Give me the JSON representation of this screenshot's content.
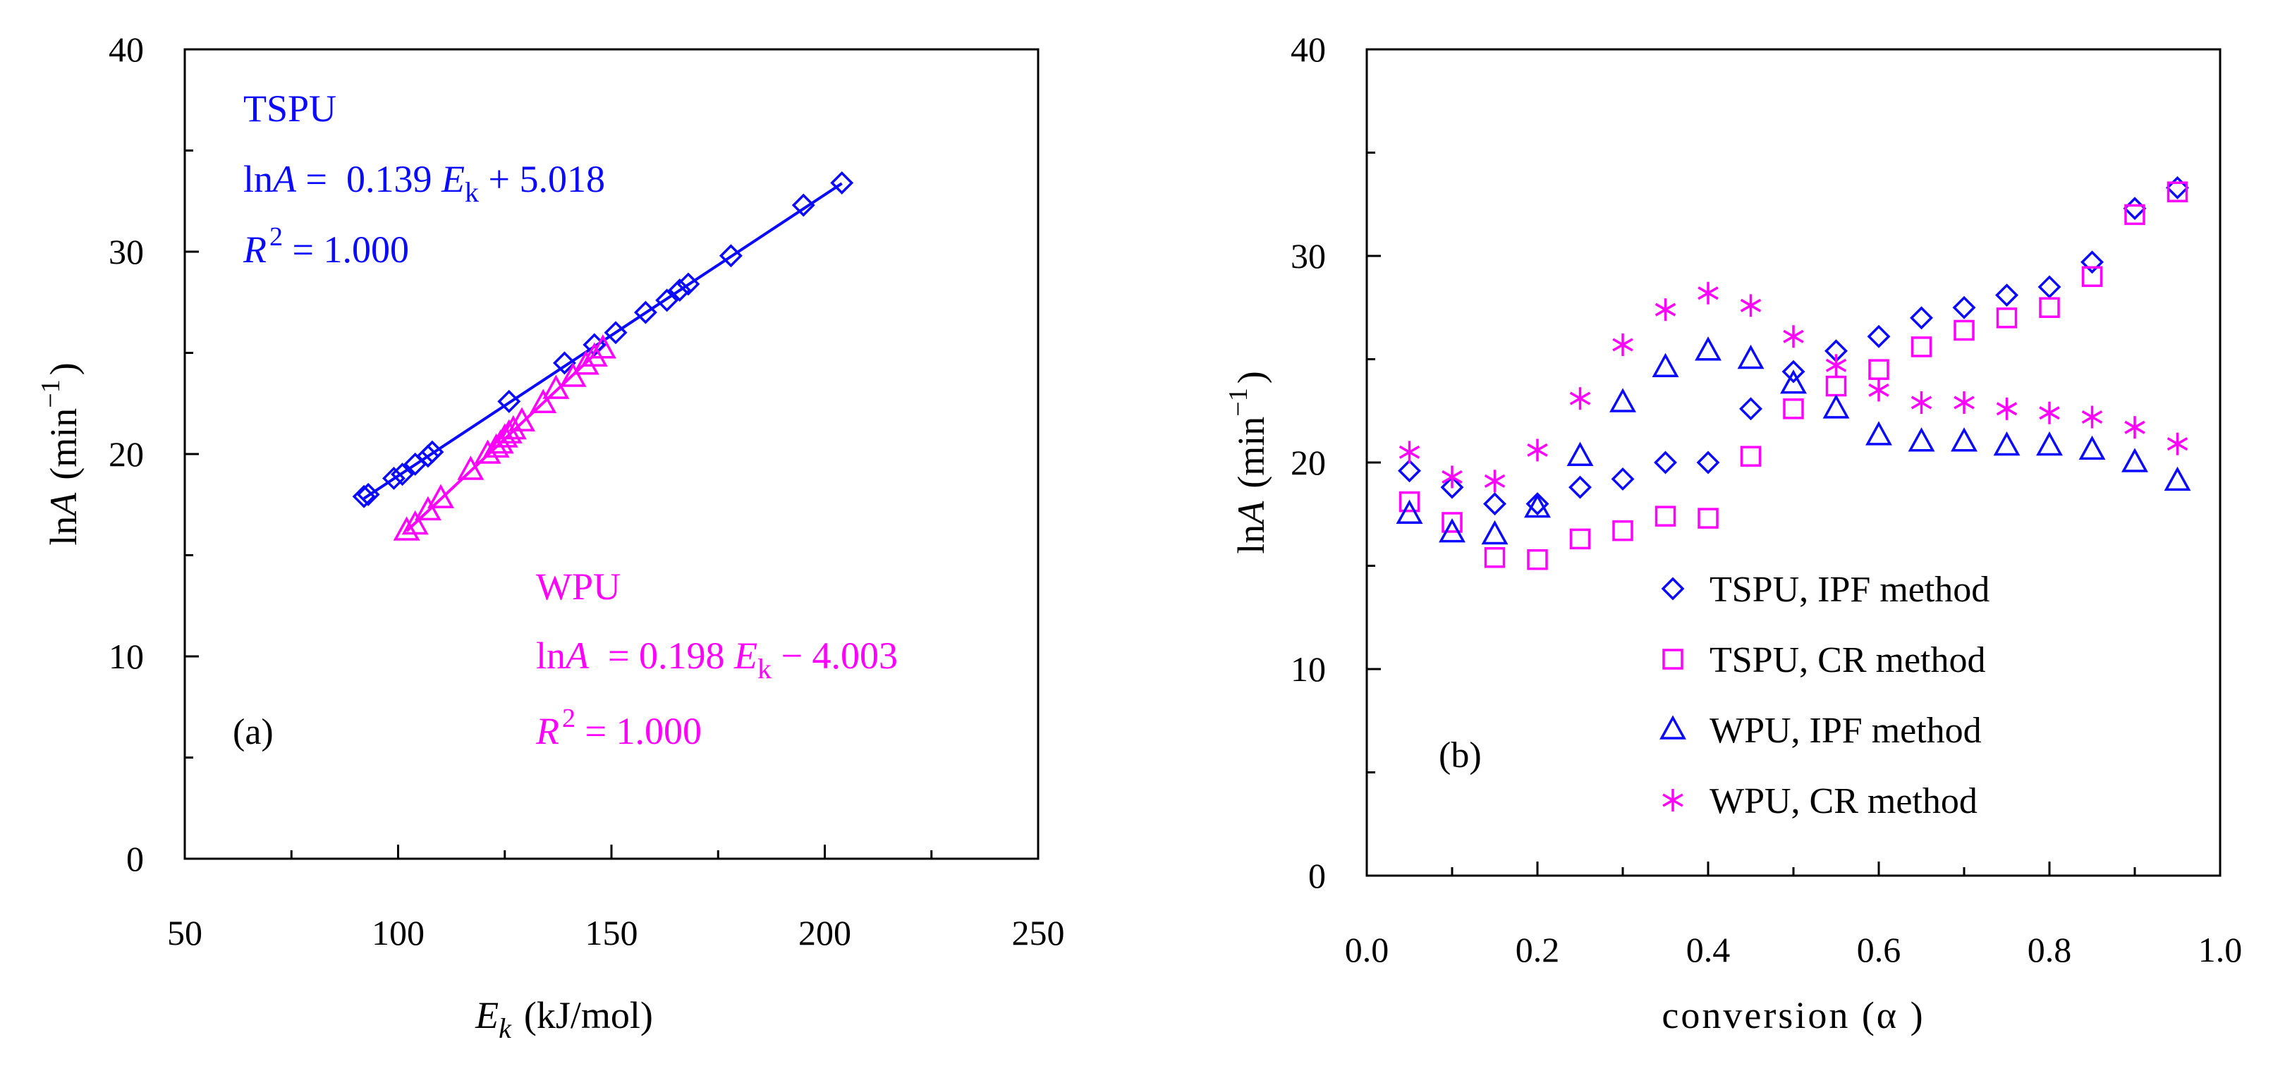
{
  "chart_data": [
    {
      "type": "scatter",
      "panel_label": "(a)",
      "xlabel": {
        "var": "E",
        "sub": "k",
        "unit": "(kJ/mol)"
      },
      "ylabel": {
        "fn": "ln",
        "var": "A",
        "unit_base": "(min",
        "unit_sup": "−1",
        "unit_close": ")"
      },
      "xlim": [
        50,
        250
      ],
      "ylim": [
        0,
        40
      ],
      "xticks": [
        50,
        100,
        150,
        200,
        250
      ],
      "yticks": [
        0,
        10,
        20,
        30,
        40
      ],
      "series": [
        {
          "name": "TSPU",
          "color": "#0a0aff",
          "marker": "diamond",
          "fit": {
            "slope": 0.139,
            "intercept": 5.018,
            "x_range": [
              92,
              204
            ]
          },
          "x": [
            92,
            93,
            99,
            101,
            104,
            107,
            108,
            126,
            139,
            146,
            151,
            158,
            163,
            166,
            168,
            178,
            195,
            204
          ],
          "y": [
            17.9,
            18.0,
            18.8,
            19.0,
            19.5,
            19.9,
            20.1,
            22.6,
            24.5,
            25.4,
            26.0,
            27.0,
            27.6,
            28.1,
            28.4,
            29.8,
            32.3,
            33.4
          ]
        },
        {
          "name": "WPU",
          "color": "#ff00ff",
          "marker": "triangle",
          "fit": {
            "slope": 0.198,
            "intercept": -4.003,
            "x_range": [
              102,
              149
            ]
          },
          "x": [
            102,
            104,
            107,
            110,
            117,
            121,
            123,
            124,
            125,
            126,
            127,
            129,
            134,
            137,
            141,
            144,
            146,
            148
          ],
          "y": [
            16.2,
            16.5,
            17.2,
            17.8,
            19.2,
            20.0,
            20.3,
            20.5,
            20.8,
            21.0,
            21.2,
            21.6,
            22.5,
            23.2,
            23.8,
            24.4,
            24.8,
            25.2
          ]
        }
      ],
      "annotations": {
        "tspu": {
          "name": "TSPU",
          "eq_fn": "ln",
          "eq_var": "A",
          "eq_mid": " =  0.139 ",
          "eq_e": "E",
          "eq_sub": "k",
          "eq_tail": " + 5.018",
          "r2_var": "R",
          "r2_sup": "2",
          "r2_val": " = 1.000"
        },
        "wpu": {
          "name": "WPU",
          "eq_fn": "ln",
          "eq_var": "A",
          "eq_mid": "  = 0.198 ",
          "eq_e": "E",
          "eq_sub": "k",
          "eq_tail": " − 4.003",
          "r2_var": "R",
          "r2_sup": "2",
          "r2_val": " = 1.000"
        }
      }
    },
    {
      "type": "scatter",
      "panel_label": "(b)",
      "xlabel": "conversion (α )",
      "ylabel": {
        "fn": "ln",
        "var": "A",
        "unit_base": "(min",
        "unit_sup": "−1",
        "unit_close": ")"
      },
      "xlim": [
        0.0,
        1.0
      ],
      "ylim": [
        0,
        40
      ],
      "xticks": [
        "0.0",
        "0.2",
        "0.4",
        "0.6",
        "0.8",
        "1.0"
      ],
      "yticks": [
        0,
        10,
        20,
        30,
        40
      ],
      "x": [
        0.05,
        0.1,
        0.15,
        0.2,
        0.25,
        0.3,
        0.35,
        0.4,
        0.45,
        0.5,
        0.55,
        0.6,
        0.65,
        0.7,
        0.75,
        0.8,
        0.85,
        0.9,
        0.95
      ],
      "series": [
        {
          "name": "TSPU, IPF method",
          "color": "#0a0aff",
          "marker": "diamond",
          "values": [
            19.6,
            18.8,
            18.0,
            18.0,
            18.8,
            19.2,
            20.0,
            20.0,
            22.6,
            24.4,
            25.4,
            26.1,
            27.0,
            27.5,
            28.1,
            28.5,
            29.7,
            32.3,
            33.3
          ]
        },
        {
          "name": "TSPU, CR method",
          "color": "#ff00ff",
          "marker": "square",
          "values": [
            18.1,
            17.1,
            15.4,
            15.3,
            16.3,
            16.7,
            17.4,
            17.3,
            20.3,
            22.6,
            23.7,
            24.5,
            25.6,
            26.4,
            27.0,
            27.5,
            29.0,
            32.0,
            33.1
          ]
        },
        {
          "name": "WPU, IPF method",
          "color": "#0a0aff",
          "marker": "triangle",
          "values": [
            17.5,
            16.6,
            16.5,
            17.8,
            20.3,
            22.9,
            24.6,
            25.4,
            25.0,
            23.8,
            22.6,
            21.3,
            21.0,
            21.0,
            20.8,
            20.8,
            20.6,
            20.0,
            19.1
          ]
        },
        {
          "name": "WPU, CR method",
          "color": "#ff00ff",
          "marker": "asterisk",
          "values": [
            20.5,
            19.3,
            19.1,
            20.6,
            23.1,
            25.7,
            27.4,
            28.2,
            27.6,
            26.1,
            24.7,
            23.5,
            22.9,
            22.9,
            22.6,
            22.4,
            22.2,
            21.7,
            20.9
          ]
        }
      ]
    }
  ]
}
